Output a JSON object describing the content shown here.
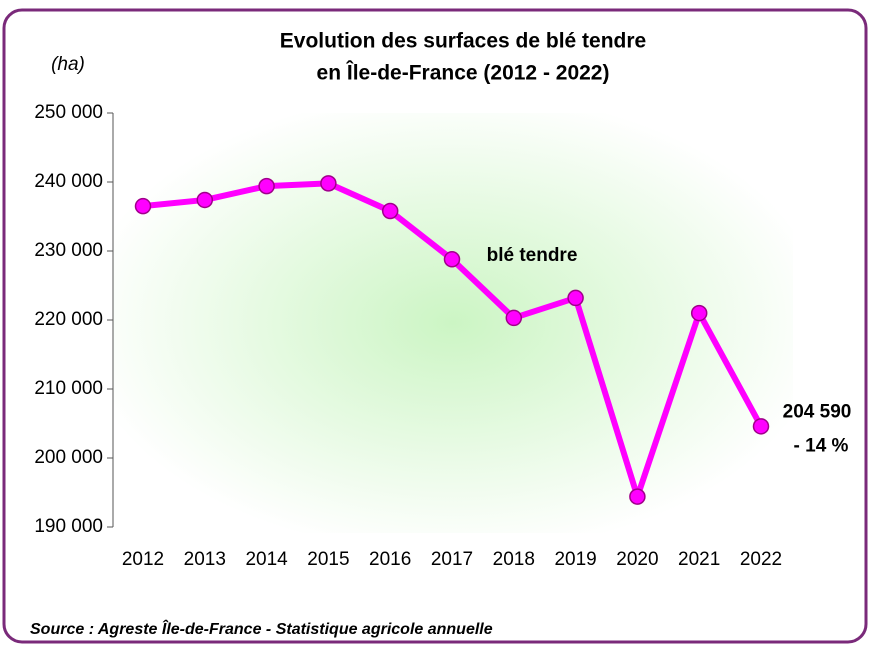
{
  "chart_data": {
    "type": "line",
    "title": [
      "Evolution des surfaces de blé tendre",
      "en Île-de-France (2012 - 2022)"
    ],
    "y_label": "(ha)",
    "categories": [
      "2012",
      "2013",
      "2014",
      "2015",
      "2016",
      "2017",
      "2018",
      "2019",
      "2020",
      "2021",
      "2022"
    ],
    "series": [
      {
        "name": "blé tendre",
        "color": "#ff00ff",
        "values": [
          236500,
          237400,
          239400,
          239800,
          235800,
          228800,
          220300,
          223200,
          194400,
          221000,
          204590
        ],
        "value_labels": [
          null,
          null,
          null,
          null,
          null,
          null,
          null,
          null,
          null,
          null,
          "204 590"
        ]
      }
    ],
    "annotation": "- 14 %",
    "ylim": [
      190000,
      250000
    ],
    "yticks": [
      {
        "value": 190000,
        "label": "190 000"
      },
      {
        "value": 200000,
        "label": "200 000"
      },
      {
        "value": 210000,
        "label": "210 000"
      },
      {
        "value": 220000,
        "label": "220 000"
      },
      {
        "value": 230000,
        "label": "230 000"
      },
      {
        "value": 240000,
        "label": "240 000"
      },
      {
        "value": 250000,
        "label": "250 000"
      }
    ],
    "source": "Source : Agreste Île-de-France  - Statistique  agricole annuelle"
  }
}
